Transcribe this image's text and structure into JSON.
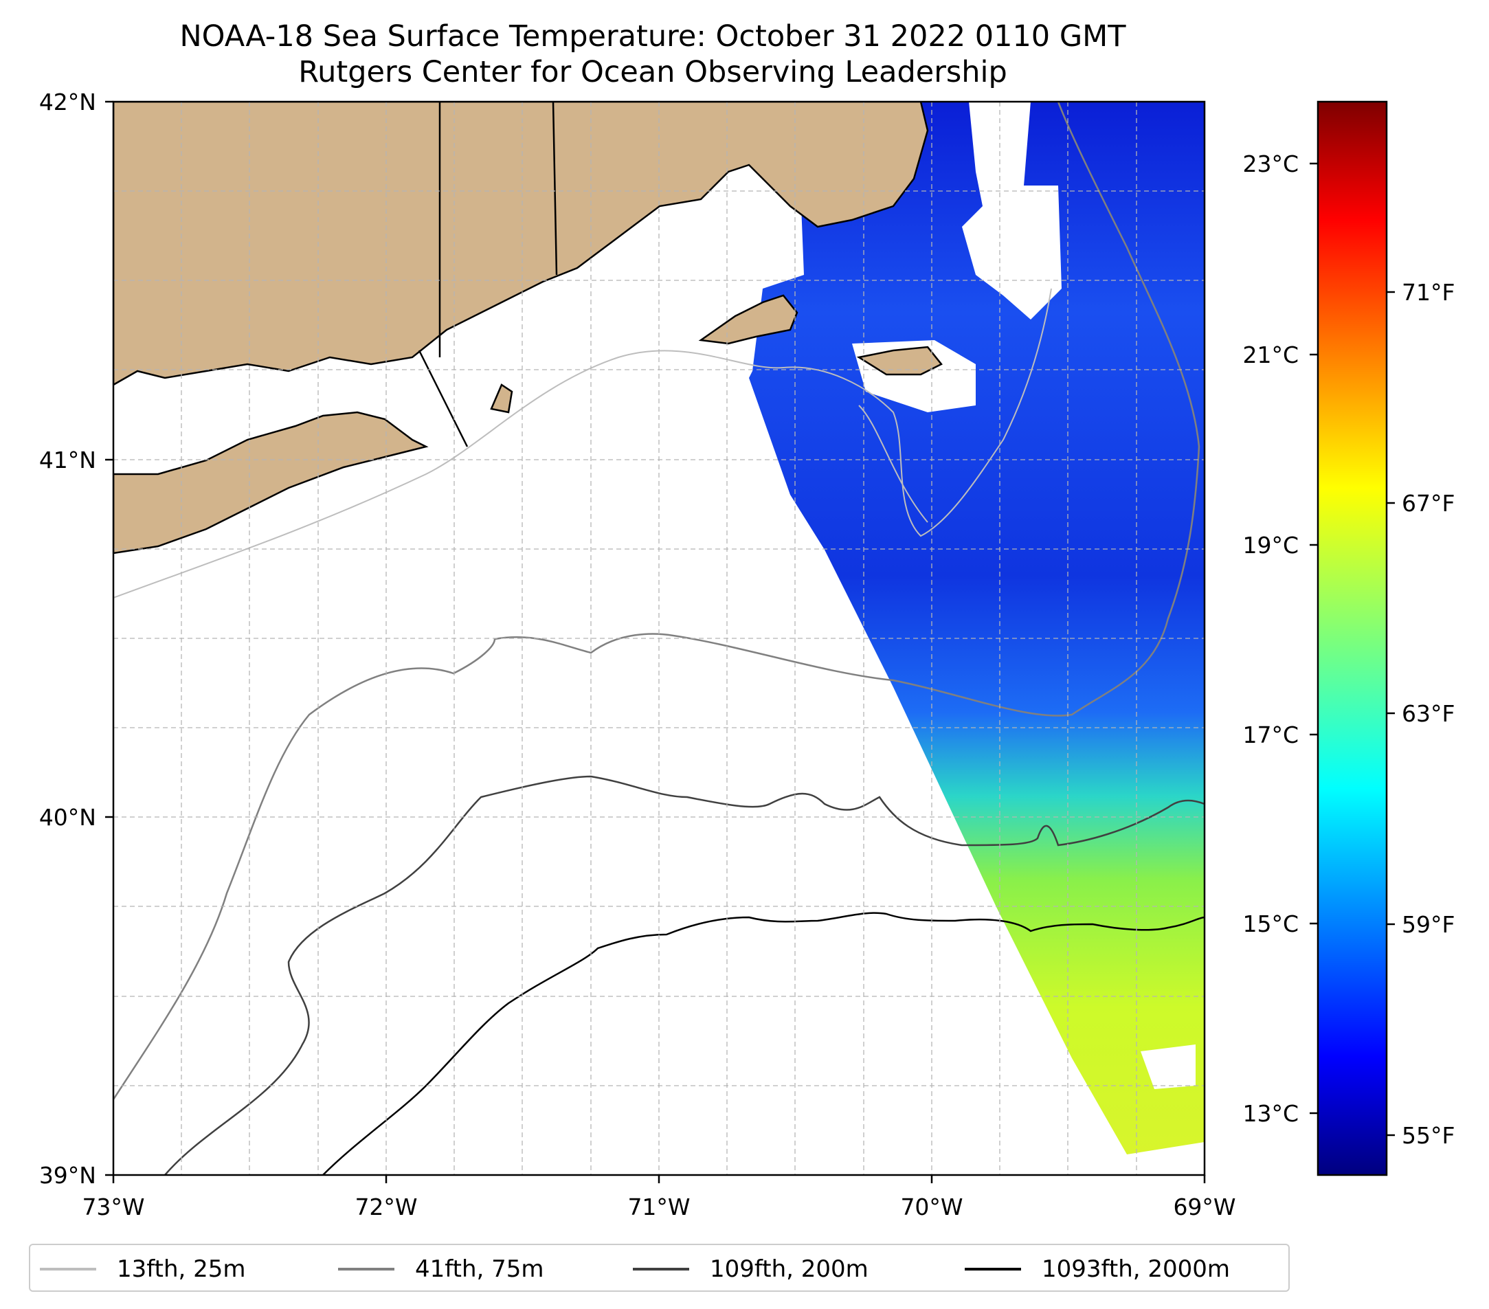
{
  "title": {
    "line1": "NOAA-18 Sea Surface Temperature: October 31 2022 0110 GMT",
    "line2": "Rutgers Center for Ocean Observing Leadership"
  },
  "map": {
    "lon_range": [
      -73,
      -69
    ],
    "lat_range": [
      39,
      42
    ],
    "x_ticks": [
      "73°W",
      "72°W",
      "71°W",
      "70°W",
      "69°W"
    ],
    "y_ticks": [
      "42°N",
      "41°N",
      "40°N",
      "39°N"
    ],
    "gridlines": true,
    "land_color": "#d2b48c",
    "ocean_color": "#ffffff"
  },
  "colorbar": {
    "colormap": "jet",
    "celsius_labels": [
      "23°C",
      "21°C",
      "19°C",
      "17°C",
      "15°C",
      "13°C"
    ],
    "fahrenheit_labels": [
      "71°F",
      "67°F",
      "63°F",
      "59°F",
      "55°F"
    ]
  },
  "legend": {
    "items": [
      {
        "label": "13fth, 25m",
        "color": "#bdbdbd"
      },
      {
        "label": "41fth, 75m",
        "color": "#808080"
      },
      {
        "label": "109fth, 200m",
        "color": "#404040"
      },
      {
        "label": "1093fth, 2000m",
        "color": "#000000"
      }
    ]
  }
}
